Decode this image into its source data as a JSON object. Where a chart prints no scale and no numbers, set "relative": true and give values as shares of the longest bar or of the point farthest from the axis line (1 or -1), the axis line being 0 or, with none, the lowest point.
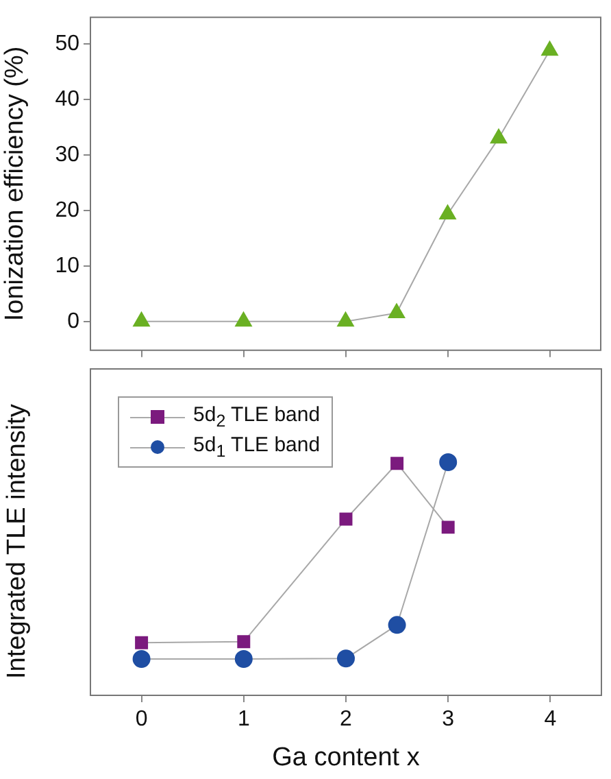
{
  "chart_data": [
    {
      "type": "line",
      "ylabel": "Ionization efficiency (%)",
      "x": [
        0,
        1,
        2,
        2.5,
        3,
        3.5,
        4
      ],
      "series": [
        {
          "color": "#6ab023",
          "marker": "triangle",
          "values": [
            0,
            0,
            0,
            1.5,
            19.3,
            33,
            48.8
          ]
        }
      ],
      "xlim": [
        -0.5,
        4.5
      ],
      "xticks": [
        0,
        1,
        2,
        3,
        4
      ],
      "ylim": [
        -5.2,
        54.8
      ],
      "yticks": [
        0,
        10,
        20,
        30,
        40,
        50
      ],
      "tick_labels": "y",
      "grid": false,
      "legend": false
    },
    {
      "type": "line",
      "ylabel": "Integrated TLE intensity",
      "xlabel": "Ga content x",
      "relative": true,
      "x": [
        0,
        1,
        2,
        2.5,
        3
      ],
      "series": [
        {
          "name": "5d$_{2}$ TLE band",
          "color": "#7b1a7e",
          "marker": "square",
          "values": [
            0.226,
            0.23,
            0.756,
            0.995,
            0.721
          ]
        },
        {
          "name": "5d$_{1}$ TLE band",
          "color": "#1f4ea3",
          "marker": "circle",
          "values": [
            0.156,
            0.156,
            0.158,
            0.302,
            1
          ]
        }
      ],
      "xlim": [
        -0.5,
        4.5
      ],
      "xticks": [
        0,
        1,
        2,
        3,
        4
      ],
      "tick_labels": "x",
      "grid": false,
      "legend": "top left"
    }
  ]
}
